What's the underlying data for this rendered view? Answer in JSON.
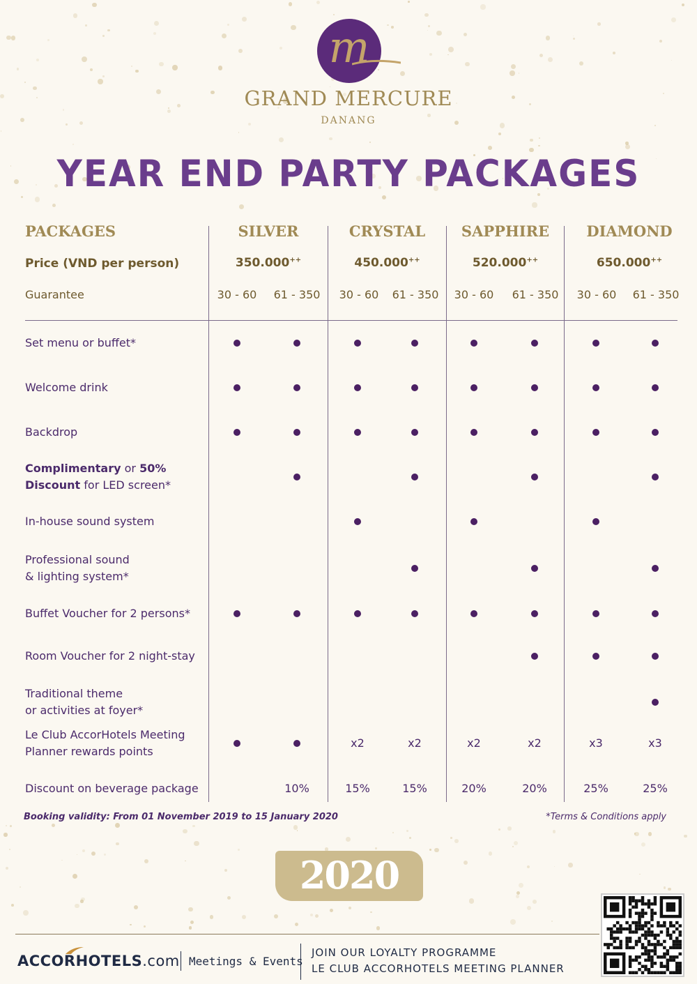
{
  "brand": {
    "logo_letter": "m",
    "name": "GRAND MERCURE",
    "city": "DANANG"
  },
  "title": "YEAR END PARTY PACKAGES",
  "table": {
    "packages_label": "PACKAGES",
    "price_label": "Price (VND per person)",
    "guarantee_label": "Guarantee",
    "packages": [
      {
        "name": "SILVER",
        "price": "350.000",
        "price_sup": "++",
        "guarantees": [
          "30 - 60",
          "61 - 350"
        ]
      },
      {
        "name": "CRYSTAL",
        "price": "450.000",
        "price_sup": "++",
        "guarantees": [
          "30 - 60",
          "61 - 350"
        ]
      },
      {
        "name": "SAPPHIRE",
        "price": "520.000",
        "price_sup": "++",
        "guarantees": [
          "30 - 60",
          "61 - 350"
        ]
      },
      {
        "name": "DIAMOND",
        "price": "650.000",
        "price_sup": "++",
        "guarantees": [
          "30 - 60",
          "61 - 350"
        ]
      }
    ],
    "rows": [
      {
        "label_parts": [
          {
            "text": "Set menu or buffet*"
          }
        ],
        "values": [
          "dot",
          "dot",
          "dot",
          "dot",
          "dot",
          "dot",
          "dot",
          "dot"
        ]
      },
      {
        "label_parts": [
          {
            "text": "Welcome drink"
          }
        ],
        "values": [
          "dot",
          "dot",
          "dot",
          "dot",
          "dot",
          "dot",
          "dot",
          "dot"
        ]
      },
      {
        "label_parts": [
          {
            "text": "Backdrop"
          }
        ],
        "values": [
          "dot",
          "dot",
          "dot",
          "dot",
          "dot",
          "dot",
          "dot",
          "dot"
        ]
      },
      {
        "label_parts": [
          {
            "text": "Complimentary",
            "bold": true
          },
          {
            "text": " or "
          },
          {
            "text": "50%",
            "bold": true
          },
          {
            "text": "\n"
          },
          {
            "text": "Discount",
            "bold": true
          },
          {
            "text": " for LED screen*"
          }
        ],
        "values": [
          "",
          "dot",
          "",
          "dot",
          "",
          "dot",
          "",
          "dot"
        ]
      },
      {
        "label_parts": [
          {
            "text": "In-house sound system"
          }
        ],
        "values": [
          "",
          "",
          "dot",
          "",
          "dot",
          "",
          "dot",
          ""
        ]
      },
      {
        "label_parts": [
          {
            "text": "Professional sound\n& lighting system*"
          }
        ],
        "values": [
          "",
          "",
          "",
          "dot",
          "",
          "dot",
          "",
          "dot"
        ]
      },
      {
        "label_parts": [
          {
            "text": "Buffet Voucher for 2 persons*"
          }
        ],
        "values": [
          "dot",
          "dot",
          "dot",
          "dot",
          "dot",
          "dot",
          "dot",
          "dot"
        ]
      },
      {
        "label_parts": [
          {
            "text": "Room Voucher for 2 night-stay"
          }
        ],
        "values": [
          "",
          "",
          "",
          "",
          "",
          "dot",
          "dot",
          "dot"
        ]
      },
      {
        "label_parts": [
          {
            "text": "Traditional theme\nor activities at foyer*"
          }
        ],
        "values": [
          "",
          "",
          "",
          "",
          "",
          "",
          "",
          "dot"
        ]
      },
      {
        "label_parts": [
          {
            "text": "Le Club AccorHotels Meeting\nPlanner rewards points"
          }
        ],
        "values": [
          "dot",
          "dot",
          "x2",
          "x2",
          "x2",
          "x2",
          "x3",
          "x3"
        ]
      },
      {
        "label_parts": [
          {
            "text": "Discount on beverage package"
          }
        ],
        "values": [
          "",
          "10%",
          "15%",
          "15%",
          "20%",
          "20%",
          "25%",
          "25%"
        ]
      }
    ]
  },
  "validity": "Booking validity: From 01 November 2019 to 15 January 2020",
  "terms": "*Terms & Conditions apply",
  "year": "2020",
  "footer": {
    "accor_bold": "ACCOR",
    "accor_rest": "HOTELS",
    "accor_domain": ".com",
    "meetings": "Meetings & Events",
    "join_line1": "JOIN OUR LOYALTY PROGRAMME",
    "join_line2": "LE CLUB ACCORHOTELS MEETING PLANNER"
  },
  "colors": {
    "purple": "#5b2b7a",
    "gold": "#a08a55",
    "dot": "#4b2063"
  }
}
